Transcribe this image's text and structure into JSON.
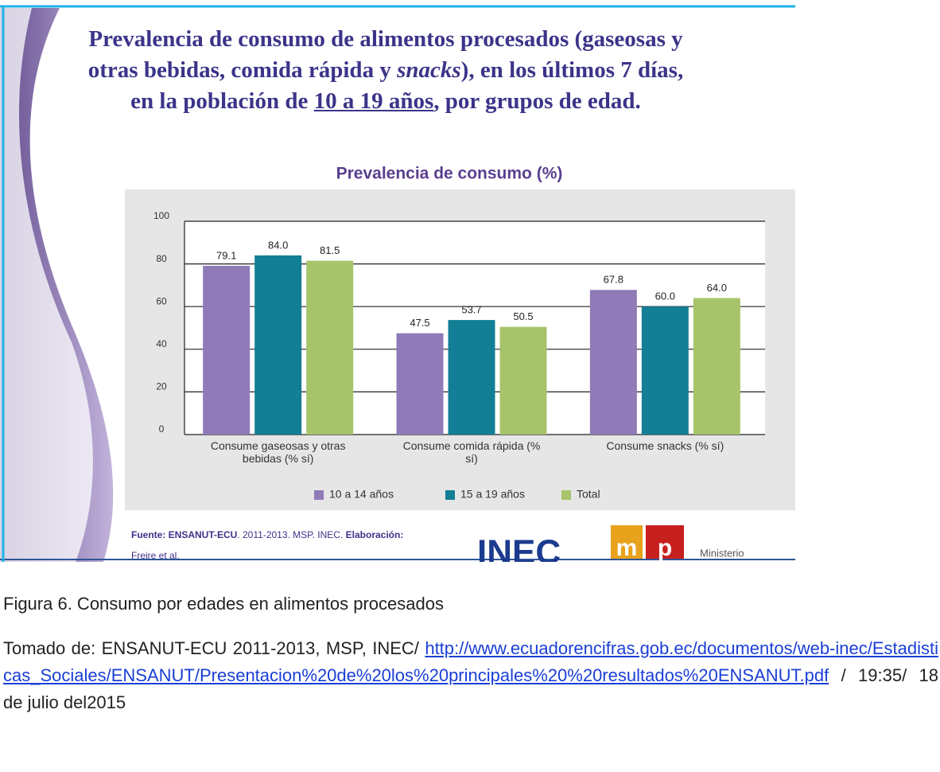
{
  "slide": {
    "title_parts": [
      "Prevalencia de consumo de alimentos procesados (gaseosas y otras bebidas, comida rápida y ",
      "snacks",
      "), en los últimos 7 días,  en la población de ",
      "10 a 19 años",
      ", por grupos de edad."
    ],
    "source_parts": [
      "Fuente: ENSANUT-ECU",
      ". 2011-2013. MSP. INEC. ",
      "Elaboración:"
    ],
    "source_author": "Freire et al.",
    "logo_inec": "INEC",
    "logo_m": "m",
    "logo_p": "p",
    "logo_ministry": "Ministerio"
  },
  "chart_data": {
    "type": "bar",
    "title": "Prevalencia de consumo (%)",
    "categories": [
      "Consume gaseosas y otras bebidas (% sí)",
      "Consume comida rápida (% sí)",
      "Consume snacks (% sí)"
    ],
    "series": [
      {
        "name": "10 a 14 años",
        "color": "#8f7bb8",
        "values": [
          79.1,
          47.5,
          67.8
        ],
        "value_labels": [
          "79.1",
          "47.5",
          "67.8"
        ]
      },
      {
        "name": "15 a 19  años",
        "color": "#127f96",
        "values": [
          84.0,
          53.7,
          60.0
        ],
        "value_labels": [
          "84.0",
          "53.7",
          "60.0"
        ]
      },
      {
        "name": "Total",
        "color": "#a7c46b",
        "values": [
          81.5,
          50.5,
          64.0
        ],
        "value_labels": [
          "81.5",
          "50.5",
          "64.0"
        ]
      }
    ],
    "ylim": [
      0,
      100
    ],
    "yticks": [
      0,
      20,
      40,
      60,
      80,
      100
    ],
    "grid": true,
    "legend": "bottom"
  },
  "caption": "Figura 6. Consumo por edades en alimentos procesados",
  "reference": {
    "prefix": "Tomado de: ENSANUT-ECU 2011-2013, MSP, INEC/",
    "url": "http://www.ecuadorencifras.gob.ec/documentos/web-inec/Estadisticas_Sociales/ENSANUT/Presentacion%20de%20los%20principales%20%20resultados%20ENSANUT.pdf",
    "suffix": " / 19:35/ 18 de julio del2015"
  }
}
